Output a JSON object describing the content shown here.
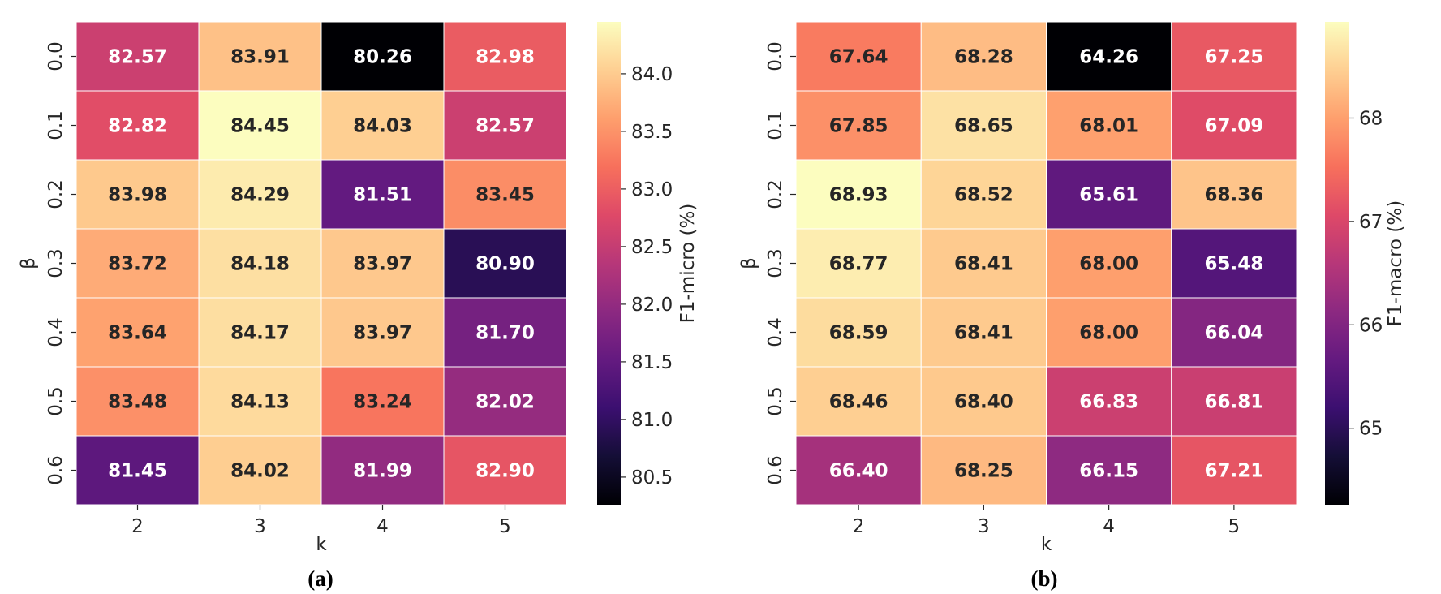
{
  "chart_data": [
    {
      "type": "heatmap",
      "caption": "(a)",
      "xlabel": "k",
      "ylabel": "β",
      "x_categories": [
        "2",
        "3",
        "4",
        "5"
      ],
      "y_categories": [
        "0.0",
        "0.1",
        "0.2",
        "0.3",
        "0.4",
        "0.5",
        "0.6"
      ],
      "values": [
        [
          82.57,
          83.91,
          80.26,
          82.98
        ],
        [
          82.82,
          84.45,
          84.03,
          82.57
        ],
        [
          83.98,
          84.29,
          81.51,
          83.45
        ],
        [
          83.72,
          84.18,
          83.97,
          80.9
        ],
        [
          83.64,
          84.17,
          83.97,
          81.7
        ],
        [
          83.48,
          84.13,
          83.24,
          82.02
        ],
        [
          81.45,
          84.02,
          81.99,
          82.9
        ]
      ],
      "value_labels": [
        [
          "82.57",
          "83.91",
          "80.26",
          "82.98"
        ],
        [
          "82.82",
          "84.45",
          "84.03",
          "82.57"
        ],
        [
          "83.98",
          "84.29",
          "81.51",
          "83.45"
        ],
        [
          "83.72",
          "84.18",
          "83.97",
          "80.90"
        ],
        [
          "83.64",
          "84.17",
          "83.97",
          "81.70"
        ],
        [
          "83.48",
          "84.13",
          "83.24",
          "82.02"
        ],
        [
          "81.45",
          "84.02",
          "81.99",
          "82.90"
        ]
      ],
      "colormap": "magma",
      "colorbar": {
        "label": "F1-micro (%)",
        "range": [
          80.26,
          84.45
        ],
        "ticks": [
          80.5,
          81.0,
          81.5,
          82.0,
          82.5,
          83.0,
          83.5,
          84.0
        ],
        "tick_labels": [
          "80.5",
          "81.0",
          "81.5",
          "82.0",
          "82.5",
          "83.0",
          "83.5",
          "84.0"
        ]
      }
    },
    {
      "type": "heatmap",
      "caption": "(b)",
      "xlabel": "k",
      "ylabel": "β",
      "x_categories": [
        "2",
        "3",
        "4",
        "5"
      ],
      "y_categories": [
        "0.0",
        "0.1",
        "0.2",
        "0.3",
        "0.4",
        "0.5",
        "0.6"
      ],
      "values": [
        [
          67.64,
          68.28,
          64.26,
          67.25
        ],
        [
          67.85,
          68.65,
          68.01,
          67.09
        ],
        [
          68.93,
          68.52,
          65.61,
          68.36
        ],
        [
          68.77,
          68.41,
          68.0,
          65.48
        ],
        [
          68.59,
          68.41,
          68.0,
          66.04
        ],
        [
          68.46,
          68.4,
          66.83,
          66.81
        ],
        [
          66.4,
          68.25,
          66.15,
          67.21
        ]
      ],
      "value_labels": [
        [
          "67.64",
          "68.28",
          "64.26",
          "67.25"
        ],
        [
          "67.85",
          "68.65",
          "68.01",
          "67.09"
        ],
        [
          "68.93",
          "68.52",
          "65.61",
          "68.36"
        ],
        [
          "68.77",
          "68.41",
          "68.00",
          "65.48"
        ],
        [
          "68.59",
          "68.41",
          "68.00",
          "66.04"
        ],
        [
          "68.46",
          "68.40",
          "66.83",
          "66.81"
        ],
        [
          "66.40",
          "68.25",
          "66.15",
          "67.21"
        ]
      ],
      "colormap": "magma",
      "colorbar": {
        "label": "F1-macro (%)",
        "range": [
          64.26,
          68.93
        ],
        "ticks": [
          65,
          66,
          67,
          68
        ],
        "tick_labels": [
          "65",
          "66",
          "67",
          "68"
        ]
      }
    }
  ],
  "colors": {
    "cell_border": "#ffffff",
    "text_dark": "#262626",
    "text_light": "#ffffff",
    "tick": "#262626"
  }
}
